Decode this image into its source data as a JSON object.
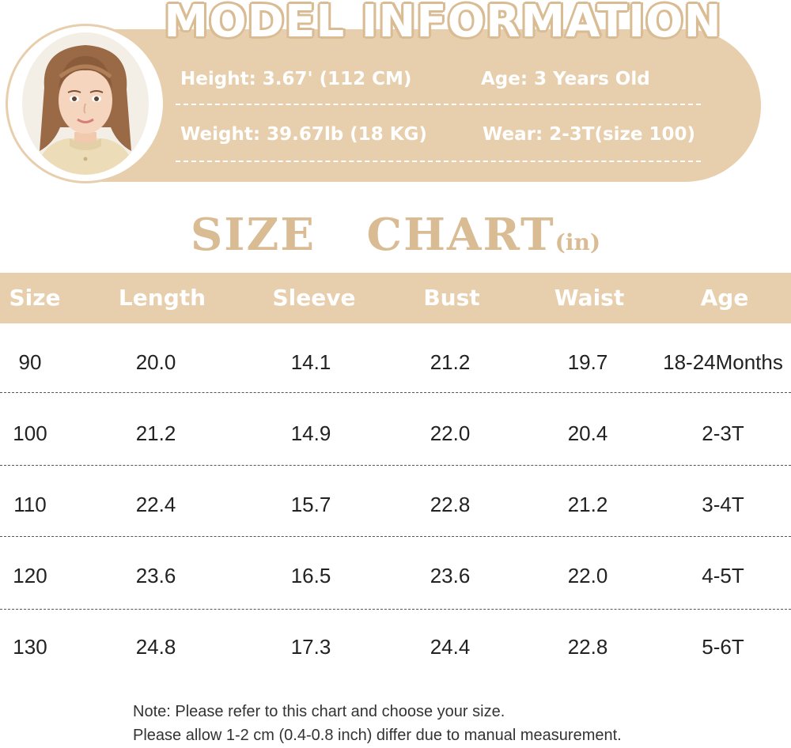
{
  "model_info": {
    "title": "MODEL INFORMATION",
    "height": "Height: 3.67' (112 CM)",
    "age": "Age: 3 Years Old",
    "weight": "Weight: 39.67lb (18 KG)",
    "wear": "Wear: 2-3T(size 100)"
  },
  "size_chart": {
    "title": "SIZE   CHART",
    "unit": "(in)",
    "headers": [
      "Size",
      "Length",
      "Sleeve",
      "Bust",
      "Waist",
      "Age"
    ],
    "rows": [
      [
        "90",
        "20.0",
        "14.1",
        "21.2",
        "19.7",
        "18-24Months"
      ],
      [
        "100",
        "21.2",
        "14.9",
        "22.0",
        "20.4",
        "2-3T"
      ],
      [
        "110",
        "22.4",
        "15.7",
        "22.8",
        "21.2",
        "3-4T"
      ],
      [
        "120",
        "23.6",
        "16.5",
        "23.6",
        "22.0",
        "4-5T"
      ],
      [
        "130",
        "24.8",
        "17.3",
        "24.4",
        "22.8",
        "5-6T"
      ]
    ]
  },
  "notes": {
    "line1": "Note: Please refer to this chart and choose your size.",
    "line2": "Please allow 1-2 cm (0.4-0.8 inch) differ due to manual measurement."
  },
  "colors": {
    "accent": "#e7cfad",
    "title_tan": "#d9bc94",
    "text": "#222222"
  },
  "icons": {
    "model_photo": "girl-portrait-icon"
  }
}
